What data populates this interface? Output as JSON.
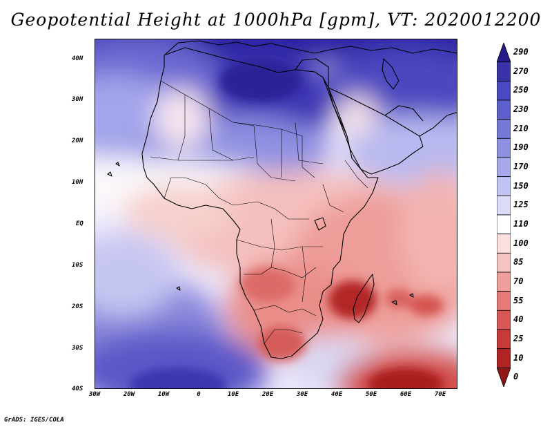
{
  "title": "Geopotential Height at 1000hPa [gpm], VT: 2020012200",
  "credit": "GrADS: IGES/COLA",
  "lat_labels": [
    "40N",
    "30N",
    "20N",
    "10N",
    "EQ",
    "10S",
    "20S",
    "30S",
    "40S"
  ],
  "lon_labels": [
    "30W",
    "20W",
    "10W",
    "0",
    "10E",
    "20E",
    "30E",
    "40E",
    "50E",
    "60E",
    "70E"
  ],
  "colorbar": {
    "labels": [
      "290",
      "270",
      "250",
      "230",
      "210",
      "190",
      "170",
      "150",
      "125",
      "110",
      "100",
      "85",
      "70",
      "55",
      "40",
      "25",
      "10",
      "0"
    ],
    "colors": [
      "#241a8c",
      "#3a33a8",
      "#4b49bf",
      "#5c5fcc",
      "#7679d8",
      "#8e91e2",
      "#a7a9eb",
      "#c1c3f2",
      "#dcdcf8",
      "#ffffff",
      "#fbe0df",
      "#f5c4c2",
      "#ef9e9c",
      "#e67a78",
      "#d85856",
      "#c73a38",
      "#b02524",
      "#8f1516"
    ]
  }
}
